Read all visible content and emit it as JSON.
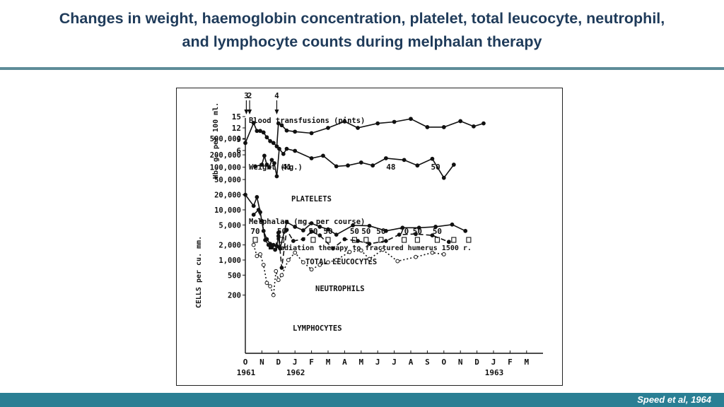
{
  "slide": {
    "title_line1": "Changes in weight, haemoglobin concentration, platelet, total leucocyte, neutrophil,",
    "title_line2": "and lymphocyte counts during melphalan therapy",
    "citation": "Speed et al, 1964",
    "colors": {
      "title": "#1f3b5a",
      "rule": "#5e8c98",
      "footer": "#2a7f94",
      "ink": "#111111"
    }
  },
  "chart_data": {
    "type": "line",
    "x_axis": {
      "months": [
        "O",
        "N",
        "D",
        "J",
        "F",
        "M",
        "A",
        "M",
        "J",
        "J",
        "A",
        "S",
        "O",
        "N",
        "D",
        "J",
        "F",
        "M"
      ],
      "years": [
        {
          "label": "1961",
          "at": 0
        },
        {
          "label": "1962",
          "at": 3
        },
        {
          "label": "1963",
          "at": 15
        }
      ]
    },
    "transfusions": {
      "label": "Blood transfusions (pints)",
      "events": [
        {
          "x": 0.06,
          "pints": "3"
        },
        {
          "x": 0.26,
          "pints": "2"
        },
        {
          "x": 1.9,
          "pints": "4"
        }
      ]
    },
    "hb_panel": {
      "ylabel": "Hb. g. per 100 ml.",
      "ticks": [
        15,
        12,
        9,
        6
      ],
      "ylim": [
        6,
        16
      ],
      "series": {
        "name": "Hb",
        "points": [
          [
            0,
            8
          ],
          [
            0.5,
            13.3
          ],
          [
            0.7,
            11.2
          ],
          [
            0.9,
            11.2
          ],
          [
            1.1,
            10.8
          ],
          [
            1.3,
            9.5
          ],
          [
            1.5,
            8.5
          ],
          [
            1.7,
            8
          ],
          [
            1.9,
            7.1
          ],
          [
            2,
            13.2
          ],
          [
            2.2,
            12.7
          ],
          [
            2.5,
            11.3
          ],
          [
            3,
            11
          ],
          [
            4,
            10.6
          ],
          [
            5,
            12
          ],
          [
            6,
            13.7
          ],
          [
            6.8,
            12
          ],
          [
            8,
            13.2
          ],
          [
            9,
            13.6
          ],
          [
            10,
            14.4
          ],
          [
            11,
            12.2
          ],
          [
            12,
            12.2
          ],
          [
            13,
            13.8
          ],
          [
            13.8,
            12.4
          ],
          [
            14.4,
            13.2
          ]
        ]
      }
    },
    "weight": {
      "label": "Weight (kg.)",
      "values": [
        {
          "x": 2.5,
          "value": "41"
        },
        {
          "x": 8.8,
          "value": "48"
        },
        {
          "x": 11.5,
          "value": "50"
        }
      ]
    },
    "platelet_panel": {
      "ticks": [
        {
          "label": "500,000",
          "value": 500000
        },
        {
          "label": "200,000",
          "value": 200000
        },
        {
          "label": "100,000",
          "value": 100000
        },
        {
          "label": "50,000",
          "value": 50000
        }
      ],
      "ylim": [
        35000,
        650000
      ],
      "series": {
        "name": "PLATELETS",
        "points": [
          [
            0.6,
            105000
          ],
          [
            1,
            115000
          ],
          [
            1.15,
            190000
          ],
          [
            1.3,
            115000
          ],
          [
            1.45,
            100000
          ],
          [
            1.6,
            150000
          ],
          [
            1.75,
            125000
          ],
          [
            1.9,
            60000
          ],
          [
            2.05,
            280000
          ],
          [
            2.3,
            210000
          ],
          [
            2.5,
            280000
          ],
          [
            3,
            250000
          ],
          [
            4,
            165000
          ],
          [
            4.7,
            190000
          ],
          [
            5.5,
            105000
          ],
          [
            6.2,
            110000
          ],
          [
            7,
            130000
          ],
          [
            7.7,
            110000
          ],
          [
            8.5,
            165000
          ],
          [
            9.6,
            150000
          ],
          [
            10.4,
            110000
          ],
          [
            11.3,
            160000
          ],
          [
            12,
            55000
          ],
          [
            12.6,
            115000
          ]
        ]
      }
    },
    "melphalan": {
      "label": "Melphalan (mg. per course)",
      "courses": [
        {
          "x": 0.6,
          "dose": "70"
        },
        {
          "x": 2.2,
          "dose": "50"
        },
        {
          "x": 4.1,
          "dose": "50"
        },
        {
          "x": 5,
          "dose": "50"
        },
        {
          "x": 6.6,
          "dose": "50"
        },
        {
          "x": 7.3,
          "dose": "50"
        },
        {
          "x": 8.2,
          "dose": "50"
        },
        {
          "x": 9.6,
          "dose": "70"
        },
        {
          "x": 10.4,
          "dose": "50"
        },
        {
          "x": 11.6,
          "dose": "50"
        },
        {
          "x": 12.6,
          "dose": ""
        },
        {
          "x": 13.5,
          "dose": ""
        }
      ]
    },
    "radiation_label": "Radiation therapy to fractured humerus 1500 r.",
    "cells_panel": {
      "ylabel": "CELLS per cu. mm.",
      "ticks": [
        {
          "label": "20,000",
          "value": 20000
        },
        {
          "label": "10,000",
          "value": 10000
        },
        {
          "label": "5,000",
          "value": 5000
        },
        {
          "label": "2,000",
          "value": 2000
        },
        {
          "label": "1,000",
          "value": 1000
        },
        {
          "label": "500",
          "value": 500
        },
        {
          "label": "200",
          "value": 200
        }
      ],
      "ylim": [
        120,
        30000
      ],
      "series": [
        {
          "name": "TOTAL LEUCOCYTES",
          "style": "solid",
          "points": [
            [
              0,
              20000
            ],
            [
              0.5,
              12000
            ],
            [
              0.7,
              18000
            ],
            [
              0.9,
              9000
            ],
            [
              1.1,
              3800
            ],
            [
              1.3,
              2600
            ],
            [
              1.5,
              2100
            ],
            [
              1.7,
              2000
            ],
            [
              1.9,
              1900
            ],
            [
              2,
              3000
            ],
            [
              2.1,
              1700
            ],
            [
              2.5,
              5700
            ],
            [
              3,
              4600
            ],
            [
              3.5,
              3900
            ],
            [
              4,
              5400
            ],
            [
              4.5,
              4600
            ],
            [
              5,
              4100
            ],
            [
              5.5,
              3200
            ],
            [
              6.5,
              4900
            ],
            [
              7.5,
              4800
            ],
            [
              8.5,
              3800
            ],
            [
              9.5,
              4400
            ],
            [
              10.5,
              4400
            ],
            [
              11.5,
              4600
            ],
            [
              12.5,
              5100
            ],
            [
              13.3,
              3800
            ]
          ]
        },
        {
          "name": "NEUTROPHILS",
          "style": "dashed",
          "points": [
            [
              0.5,
              8000
            ],
            [
              0.8,
              10000
            ],
            [
              1,
              6000
            ],
            [
              1.2,
              2500
            ],
            [
              1.4,
              2000
            ],
            [
              1.6,
              1800
            ],
            [
              1.8,
              1600
            ],
            [
              2,
              3500
            ],
            [
              2.2,
              700
            ],
            [
              2.5,
              4000
            ],
            [
              2.9,
              2400
            ],
            [
              3.5,
              2600
            ],
            [
              4,
              3700
            ],
            [
              4.5,
              3100
            ],
            [
              5.3,
              1700
            ],
            [
              6,
              2600
            ],
            [
              6.8,
              2400
            ],
            [
              7.5,
              2100
            ],
            [
              8.5,
              2400
            ],
            [
              9.3,
              3200
            ],
            [
              10.3,
              3300
            ],
            [
              11.3,
              3100
            ],
            [
              12.3,
              2300
            ]
          ]
        },
        {
          "name": "LYMPHOCYTES",
          "style": "dotted",
          "points": [
            [
              0.5,
              2000
            ],
            [
              0.7,
              1200
            ],
            [
              0.9,
              1300
            ],
            [
              1.1,
              800
            ],
            [
              1.3,
              350
            ],
            [
              1.5,
              300
            ],
            [
              1.7,
              200
            ],
            [
              1.85,
              600
            ],
            [
              2,
              400
            ],
            [
              2.2,
              500
            ],
            [
              2.6,
              1000
            ],
            [
              3,
              1400
            ],
            [
              3.5,
              900
            ],
            [
              4,
              650
            ],
            [
              4.5,
              800
            ],
            [
              5,
              900
            ],
            [
              5.5,
              1000
            ],
            [
              6.3,
              1450
            ],
            [
              7,
              1550
            ],
            [
              7.5,
              1050
            ],
            [
              8.3,
              1600
            ],
            [
              9.2,
              950
            ],
            [
              10.3,
              1150
            ],
            [
              11.3,
              1400
            ],
            [
              12,
              1300
            ]
          ]
        }
      ]
    }
  }
}
